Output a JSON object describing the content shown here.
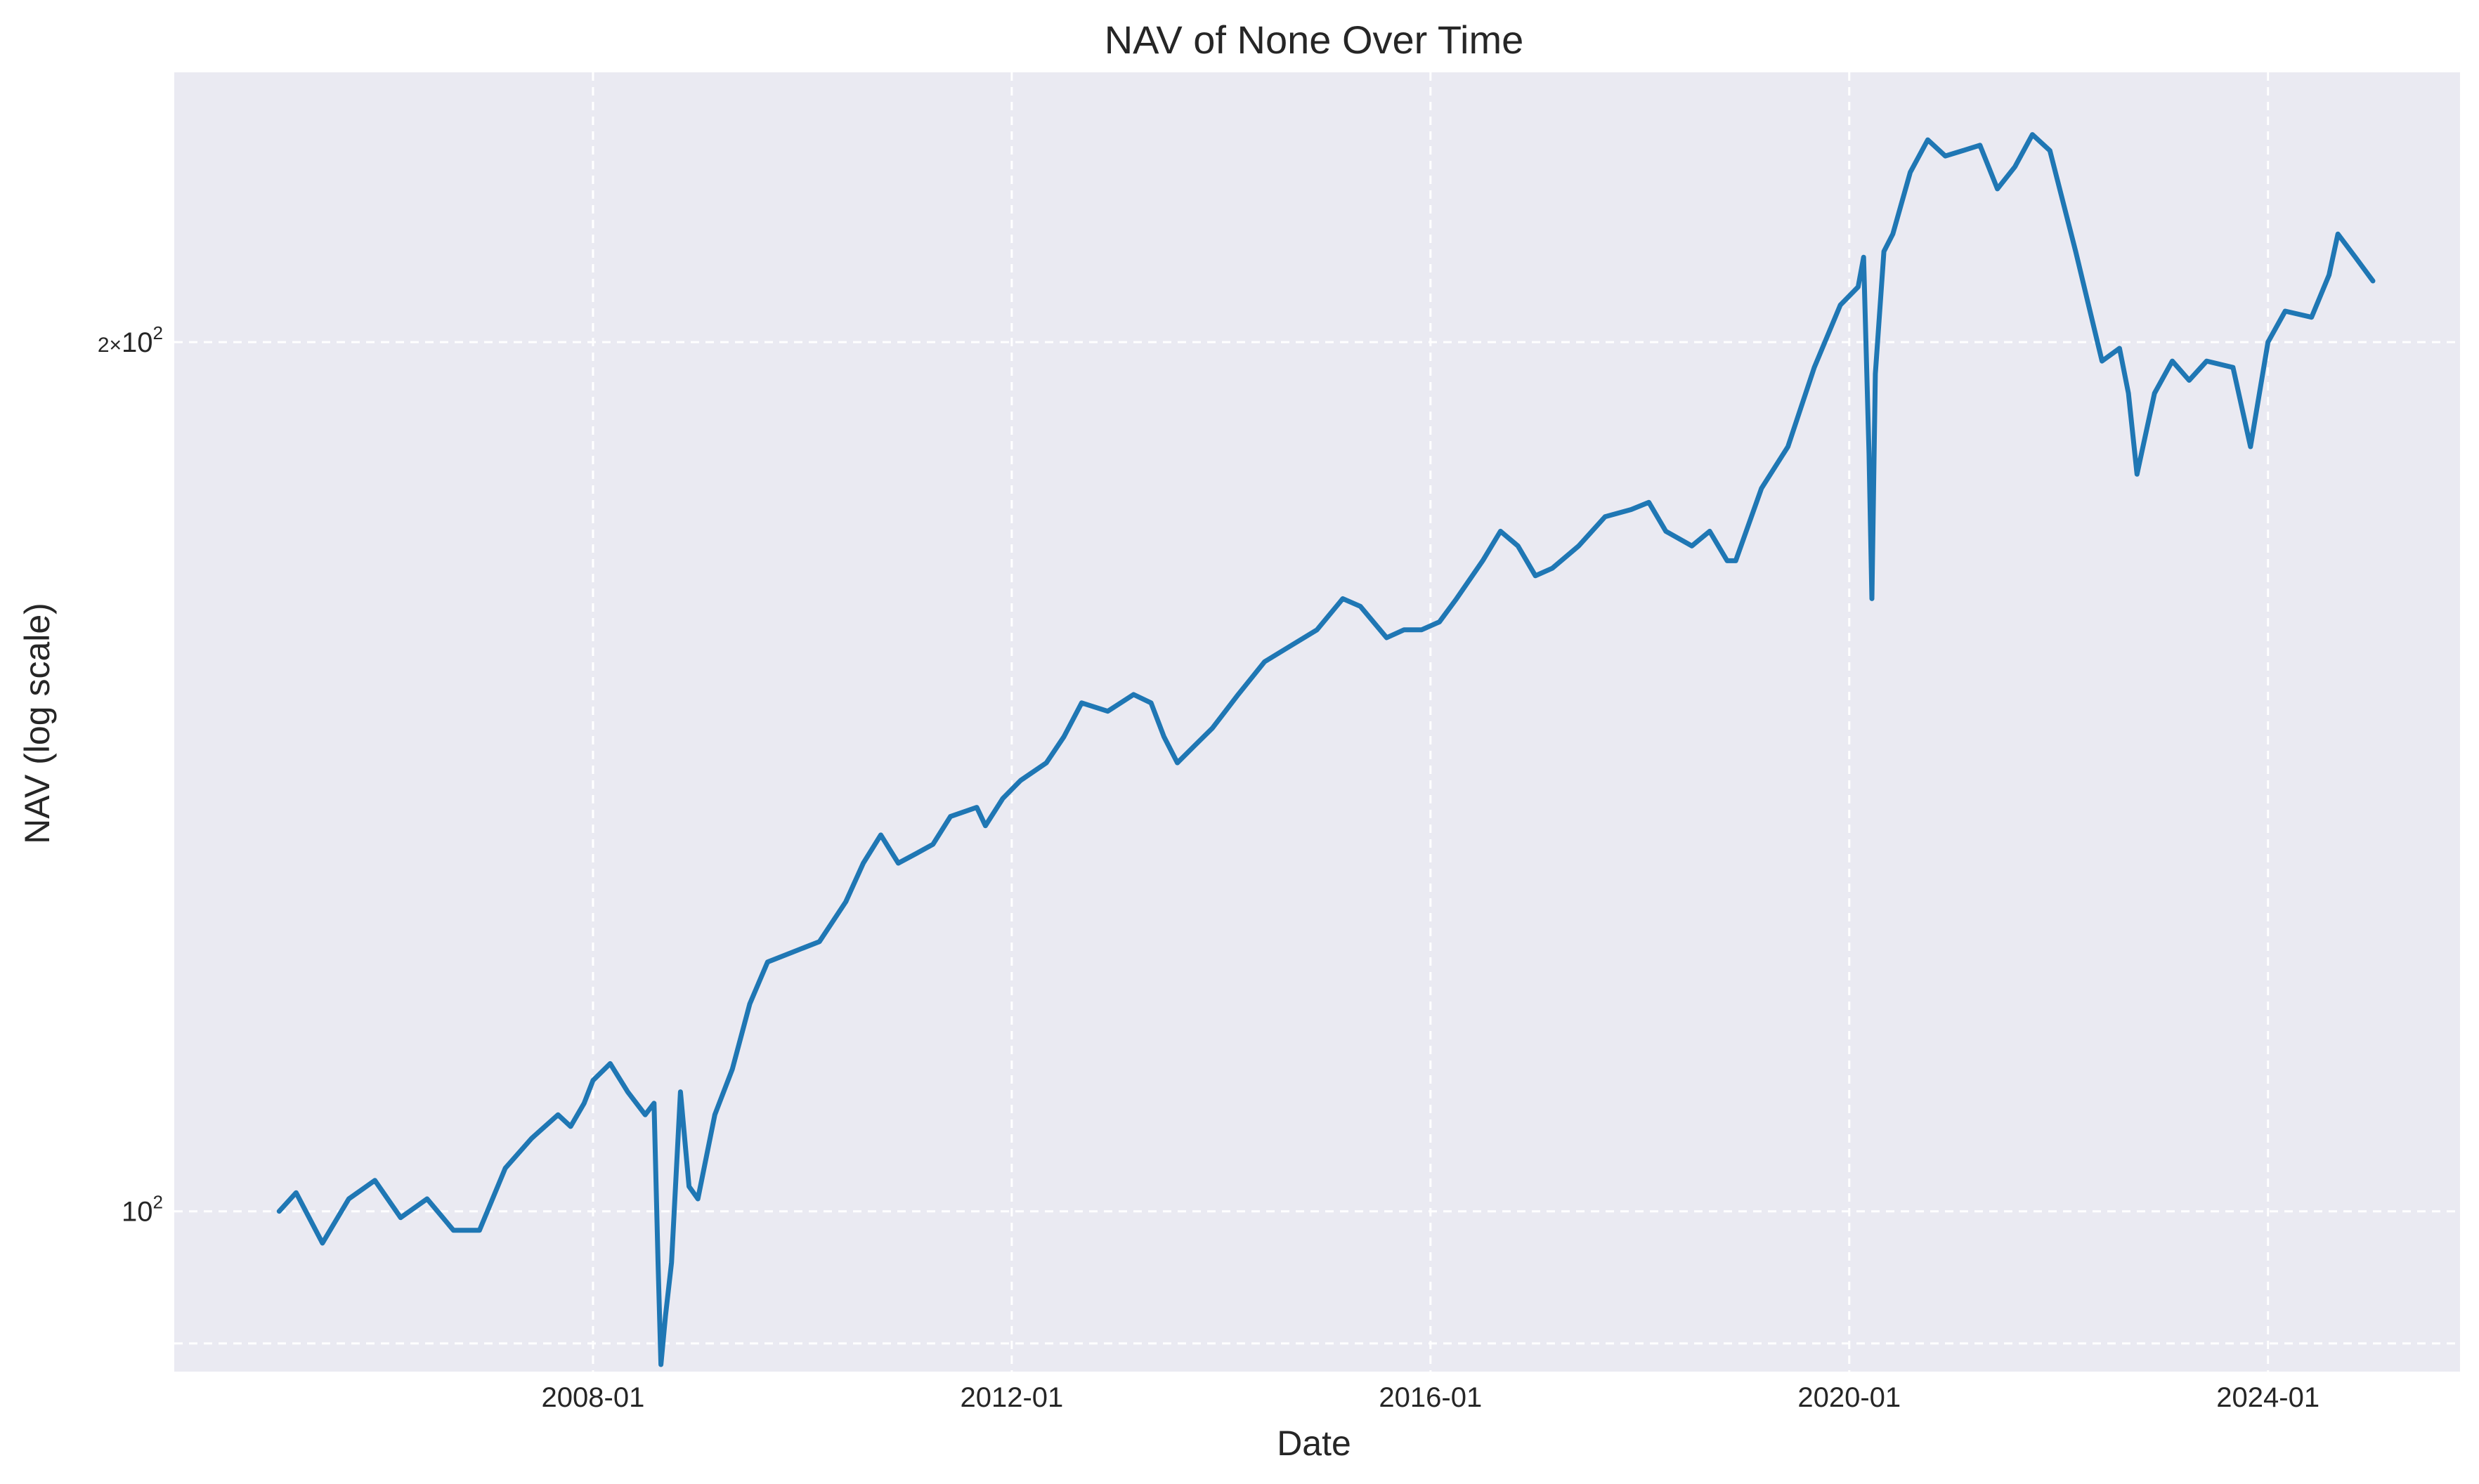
{
  "chart_data": {
    "type": "line",
    "title": "NAV of None Over Time",
    "xlabel": "Date",
    "ylabel": "NAV (log scale)",
    "yscale": "log",
    "grid": true,
    "legend": "none",
    "xlim": [
      "2004-01-01",
      "2025-11-01"
    ],
    "ylim": [
      88,
      248
    ],
    "x_ticks": [
      "2008-01",
      "2012-01",
      "2016-01",
      "2020-01",
      "2024-01"
    ],
    "y_ticks": [
      {
        "value": 100,
        "base": "10",
        "exp": "2"
      },
      {
        "value": 200,
        "mantissa": "2",
        "base": "10",
        "exp": "2"
      }
    ],
    "minor_gridlines": [
      90
    ],
    "series": [
      {
        "color": "#1f77b4",
        "points": [
          [
            "2005-01-01",
            100
          ],
          [
            "2005-03-01",
            101.5
          ],
          [
            "2005-06-01",
            97.5
          ],
          [
            "2005-09-01",
            101
          ],
          [
            "2005-12-01",
            102.5
          ],
          [
            "2006-03-01",
            99.5
          ],
          [
            "2006-06-01",
            101
          ],
          [
            "2006-09-01",
            98.5
          ],
          [
            "2006-12-01",
            98.5
          ],
          [
            "2007-03-01",
            103.5
          ],
          [
            "2007-06-01",
            106
          ],
          [
            "2007-09-01",
            108
          ],
          [
            "2007-10-15",
            107
          ],
          [
            "2007-12-01",
            109
          ],
          [
            "2008-01-01",
            111
          ],
          [
            "2008-03-01",
            112.5
          ],
          [
            "2008-05-01",
            110
          ],
          [
            "2008-07-01",
            108
          ],
          [
            "2008-08-01",
            109
          ],
          [
            "2008-08-15",
            96
          ],
          [
            "2008-08-25",
            88.5
          ],
          [
            "2008-09-10",
            92
          ],
          [
            "2008-10-01",
            96
          ],
          [
            "2008-11-01",
            110
          ],
          [
            "2008-12-01",
            102
          ],
          [
            "2009-01-01",
            101
          ],
          [
            "2009-03-01",
            108
          ],
          [
            "2009-05-01",
            112
          ],
          [
            "2009-07-01",
            118
          ],
          [
            "2009-09-01",
            122
          ],
          [
            "2009-12-01",
            123
          ],
          [
            "2010-03-01",
            124
          ],
          [
            "2010-06-01",
            128
          ],
          [
            "2010-08-01",
            132
          ],
          [
            "2010-10-01",
            135
          ],
          [
            "2010-12-01",
            132
          ],
          [
            "2011-02-01",
            133
          ],
          [
            "2011-04-01",
            134
          ],
          [
            "2011-06-01",
            137
          ],
          [
            "2011-09-01",
            138
          ],
          [
            "2011-10-01",
            136
          ],
          [
            "2011-12-01",
            139
          ],
          [
            "2012-02-01",
            141
          ],
          [
            "2012-05-01",
            143
          ],
          [
            "2012-07-01",
            146
          ],
          [
            "2012-09-01",
            150
          ],
          [
            "2012-12-01",
            149
          ],
          [
            "2013-03-01",
            151
          ],
          [
            "2013-05-01",
            150
          ],
          [
            "2013-06-15",
            146
          ],
          [
            "2013-08-01",
            143
          ],
          [
            "2013-10-01",
            145
          ],
          [
            "2013-12-01",
            147
          ],
          [
            "2014-03-01",
            151
          ],
          [
            "2014-06-01",
            155
          ],
          [
            "2014-09-01",
            157
          ],
          [
            "2014-12-01",
            159
          ],
          [
            "2015-03-01",
            163
          ],
          [
            "2015-05-01",
            162
          ],
          [
            "2015-08-01",
            158
          ],
          [
            "2015-10-01",
            159
          ],
          [
            "2015-12-01",
            159
          ],
          [
            "2016-02-01",
            160
          ],
          [
            "2016-04-01",
            163
          ],
          [
            "2016-07-01",
            168
          ],
          [
            "2016-09-01",
            172
          ],
          [
            "2016-11-01",
            170
          ],
          [
            "2017-01-01",
            166
          ],
          [
            "2017-03-01",
            167
          ],
          [
            "2017-06-01",
            170
          ],
          [
            "2017-09-01",
            174
          ],
          [
            "2017-12-01",
            175
          ],
          [
            "2018-02-01",
            176
          ],
          [
            "2018-04-01",
            172
          ],
          [
            "2018-07-01",
            170
          ],
          [
            "2018-09-01",
            172
          ],
          [
            "2018-11-01",
            168
          ],
          [
            "2018-12-01",
            168
          ],
          [
            "2019-03-01",
            178
          ],
          [
            "2019-06-01",
            184
          ],
          [
            "2019-09-01",
            196
          ],
          [
            "2019-12-01",
            206
          ],
          [
            "2020-02-01",
            209
          ],
          [
            "2020-02-20",
            214
          ],
          [
            "2020-03-10",
            183
          ],
          [
            "2020-03-20",
            163
          ],
          [
            "2020-04-01",
            195
          ],
          [
            "2020-05-01",
            215
          ],
          [
            "2020-06-01",
            218
          ],
          [
            "2020-08-01",
            229
          ],
          [
            "2020-10-01",
            235
          ],
          [
            "2020-12-01",
            232
          ],
          [
            "2021-02-01",
            233
          ],
          [
            "2021-04-01",
            234
          ],
          [
            "2021-06-01",
            226
          ],
          [
            "2021-08-01",
            230
          ],
          [
            "2021-10-01",
            236
          ],
          [
            "2021-12-01",
            233
          ],
          [
            "2022-03-01",
            215
          ],
          [
            "2022-06-01",
            197
          ],
          [
            "2022-08-01",
            199
          ],
          [
            "2022-09-01",
            192
          ],
          [
            "2022-10-01",
            180
          ],
          [
            "2022-12-01",
            192
          ],
          [
            "2023-02-01",
            197
          ],
          [
            "2023-04-01",
            194
          ],
          [
            "2023-06-01",
            197
          ],
          [
            "2023-09-01",
            196
          ],
          [
            "2023-11-01",
            184
          ],
          [
            "2024-01-01",
            200
          ],
          [
            "2024-03-01",
            205
          ],
          [
            "2024-06-01",
            204
          ],
          [
            "2024-08-01",
            211
          ],
          [
            "2024-09-01",
            218
          ],
          [
            "2024-11-01",
            214
          ],
          [
            "2025-01-01",
            210
          ]
        ]
      }
    ]
  }
}
